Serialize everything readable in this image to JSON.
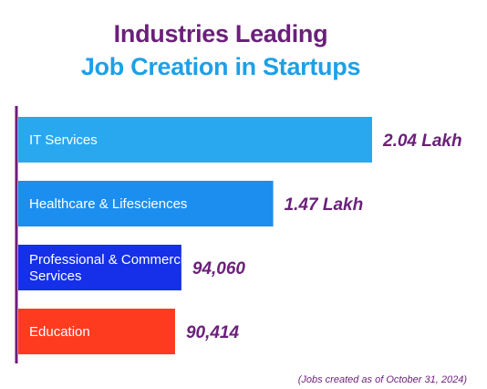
{
  "chart_data": {
    "type": "bar",
    "orientation": "horizontal",
    "title_line1": "Industries Leading",
    "title_line2": "Job Creation in Startups",
    "categories": [
      [
        "IT Services"
      ],
      [
        "Healthcare & Lifesciences"
      ],
      [
        "Professional & Commercial",
        "Services"
      ],
      [
        "Education"
      ]
    ],
    "values": [
      204000,
      147000,
      94060,
      90414
    ],
    "value_labels": [
      "2.04 Lakh",
      "1.47 Lakh",
      "94,060",
      "90,414"
    ],
    "bar_colors": [
      "#29a8f0",
      "#1c8ef0",
      "#1530e8",
      "#ff3b1f"
    ],
    "axis_color": "#6b1f7a",
    "label_color": "#6b1f7a",
    "footnote": "(Jobs created as of October 31, 2024)"
  }
}
